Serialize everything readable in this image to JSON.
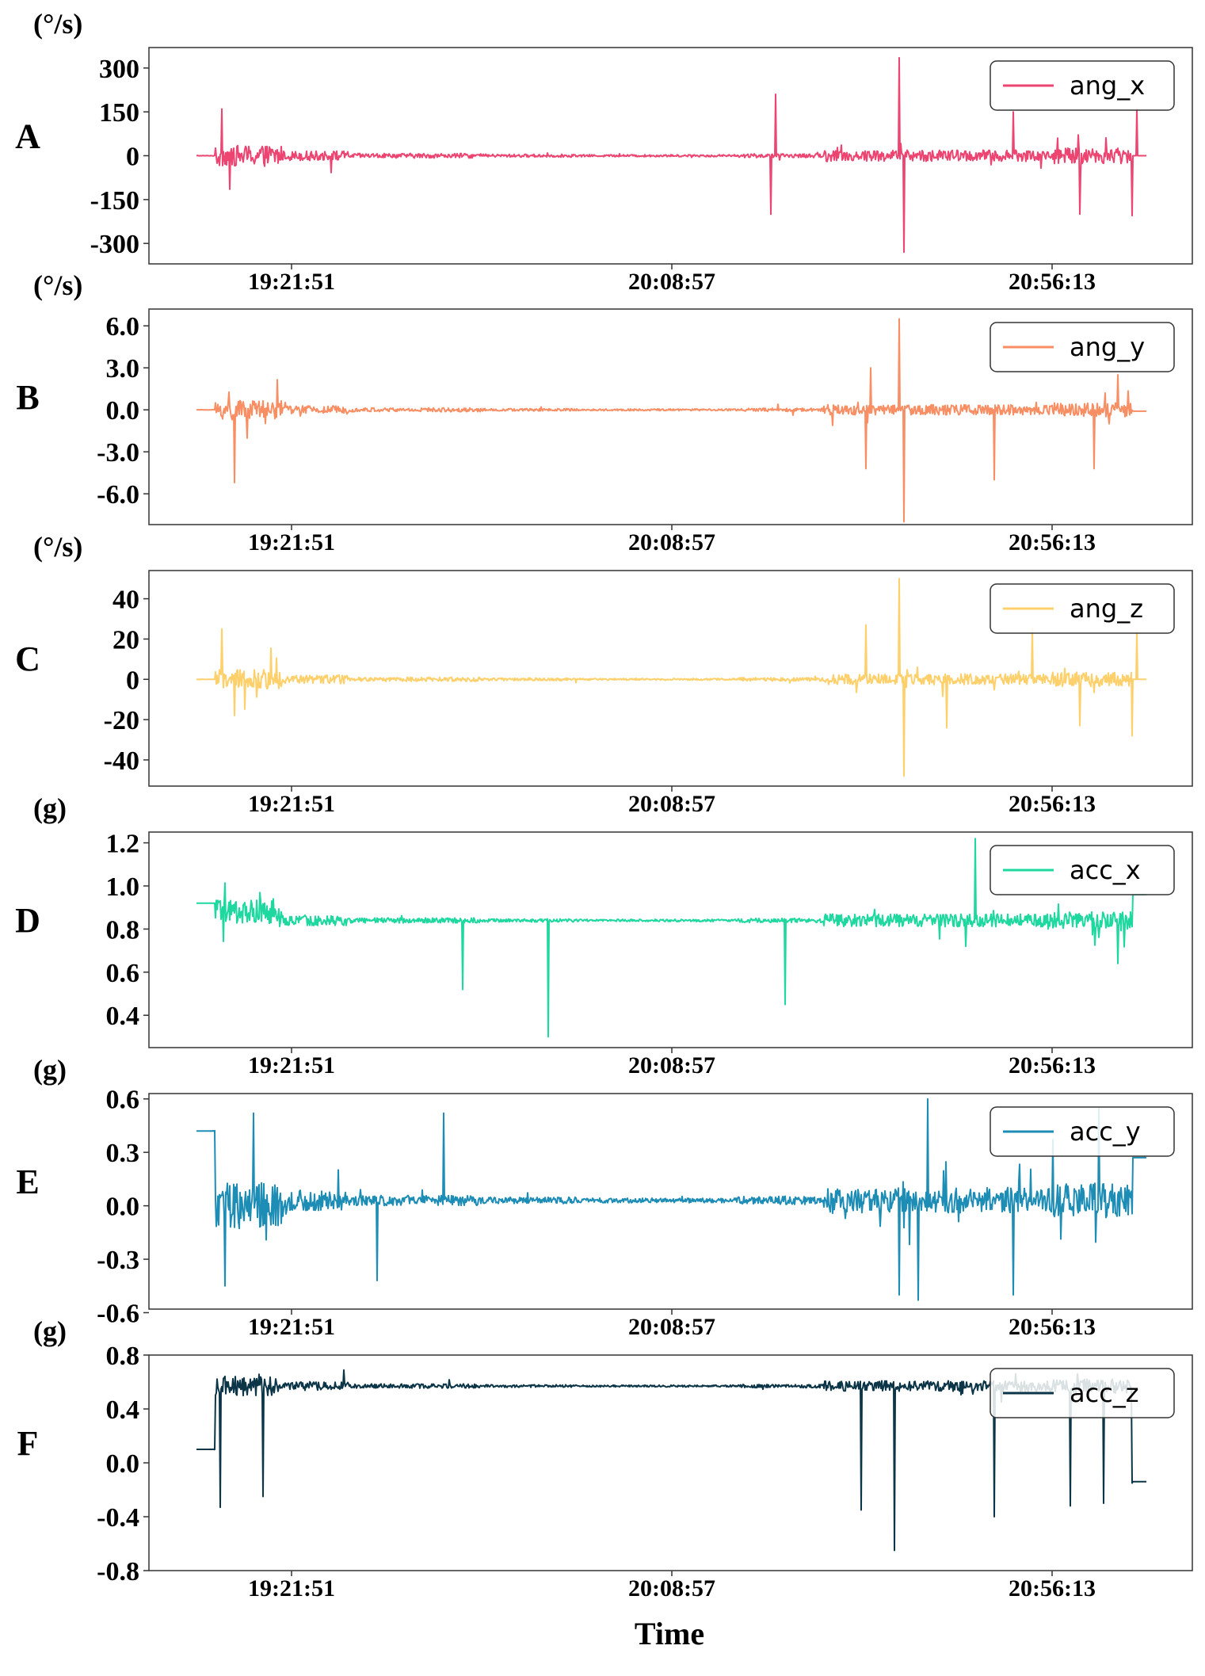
{
  "chart_data": [
    {
      "type": "line",
      "panel_label": "A",
      "unit_label": "(°/s)",
      "series": [
        {
          "name": "ang_x",
          "color": "#ec4572"
        }
      ],
      "ylim": [
        -370,
        370
      ],
      "y_ticks": [
        300,
        150,
        0,
        -150,
        -300
      ],
      "y_tick_labels": [
        "300",
        "150",
        "0",
        "-150",
        "-300"
      ],
      "x_tick_labels": [
        "19:21:51",
        "20:08:57",
        "20:56:13"
      ],
      "amplitude": "large spikes near 20:43 reaching about 340 / -335",
      "legend_position": "top-right",
      "grid": false
    },
    {
      "type": "line",
      "panel_label": "B",
      "unit_label": "(°/s)",
      "series": [
        {
          "name": "ang_y",
          "color": "#f88e63"
        }
      ],
      "ylim": [
        -8.2,
        7.2
      ],
      "y_ticks": [
        6,
        3,
        0,
        -3,
        -6
      ],
      "y_tick_labels": [
        "6.0",
        "3.0",
        "0.0",
        "-3.0",
        "-6.0"
      ],
      "x_tick_labels": [
        "19:21:51",
        "20:08:57",
        "20:56:13"
      ],
      "legend_position": "top-right",
      "grid": false
    },
    {
      "type": "line",
      "panel_label": "C",
      "unit_label": "(°/s)",
      "series": [
        {
          "name": "ang_z",
          "color": "#fdd06b"
        }
      ],
      "ylim": [
        -53,
        54
      ],
      "y_ticks": [
        40,
        20,
        0,
        -20,
        -40
      ],
      "y_tick_labels": [
        "40",
        "20",
        "0",
        "-20",
        "-40"
      ],
      "x_tick_labels": [
        "19:21:51",
        "20:08:57",
        "20:56:13"
      ],
      "legend_position": "top-right",
      "grid": false
    },
    {
      "type": "line",
      "panel_label": "D",
      "unit_label": "(g)",
      "series": [
        {
          "name": "acc_x",
          "color": "#1ed8a0"
        }
      ],
      "ylim": [
        0.25,
        1.25
      ],
      "y_ticks": [
        1.2,
        1.0,
        0.8,
        0.6,
        0.4
      ],
      "y_tick_labels": [
        "1.2",
        "1.0",
        "0.8",
        "0.6",
        "0.4"
      ],
      "x_tick_labels": [
        "19:21:51",
        "20:08:57",
        "20:56:13"
      ],
      "legend_position": "top-right",
      "grid": false
    },
    {
      "type": "line",
      "panel_label": "E",
      "unit_label": "(g)",
      "series": [
        {
          "name": "acc_y",
          "color": "#1e8db6"
        }
      ],
      "ylim": [
        -0.58,
        0.63
      ],
      "y_ticks": [
        0.6,
        0.3,
        0,
        -0.3,
        -0.6
      ],
      "y_tick_labels": [
        "0.6",
        "0.3",
        "0.0",
        "-0.3",
        "-0.6"
      ],
      "x_tick_labels": [
        "19:21:51",
        "20:08:57",
        "20:56:13"
      ],
      "legend_position": "top-right",
      "grid": false
    },
    {
      "type": "line",
      "panel_label": "F",
      "unit_label": "(g)",
      "series": [
        {
          "name": "acc_z",
          "color": "#0c3648"
        }
      ],
      "ylim": [
        -0.8,
        0.8
      ],
      "y_ticks": [
        0.8,
        0.4,
        0,
        -0.4,
        -0.8
      ],
      "y_tick_labels": [
        "0.8",
        "0.4",
        "0.0",
        "-0.4",
        "-0.8"
      ],
      "x_tick_labels": [
        "19:21:51",
        "20:08:57",
        "20:56:13"
      ],
      "legend_position": "top-right",
      "grid": false
    }
  ],
  "x_axis_title": "Time"
}
